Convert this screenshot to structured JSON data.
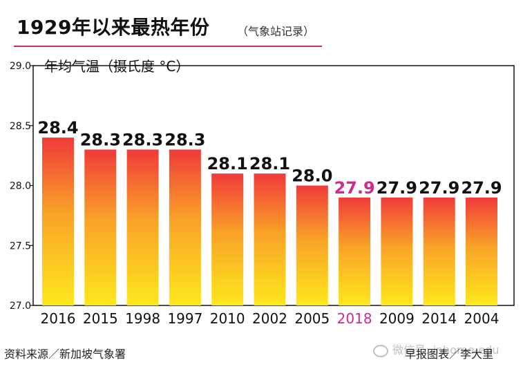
{
  "header": {
    "title": "1929年以来最热年份",
    "subtitle": "（气象站记录）"
  },
  "footer": {
    "source": "资料来源／新加坡气象署",
    "credit": "早报图表／李大里",
    "watermark": "微信号: inhome-edu"
  },
  "colors": {
    "bar_top": "#f03a3a",
    "bar_bottom": "#fde81c",
    "highlight_label": "#d12a8a",
    "title_rule": "#c0306a"
  },
  "chart_data": {
    "type": "bar",
    "ylabel": "年均气温（摄氏度 °C）",
    "ylim": [
      27.0,
      29.0
    ],
    "yticks": [
      "27.0",
      "27.5",
      "28.0",
      "28.5",
      "29.0"
    ],
    "categories": [
      "2016",
      "2015",
      "1998",
      "1997",
      "2010",
      "2002",
      "2005",
      "2018",
      "2009",
      "2014",
      "2004"
    ],
    "values": [
      28.4,
      28.3,
      28.3,
      28.3,
      28.1,
      28.1,
      28.0,
      27.9,
      27.9,
      27.9,
      27.9
    ],
    "value_labels": [
      "28.4",
      "28.3",
      "28.3",
      "28.3",
      "28.1",
      "28.1",
      "28.0",
      "27.9",
      "27.9",
      "27.9",
      "27.9"
    ],
    "highlighted_category": "2018",
    "grid": false
  }
}
